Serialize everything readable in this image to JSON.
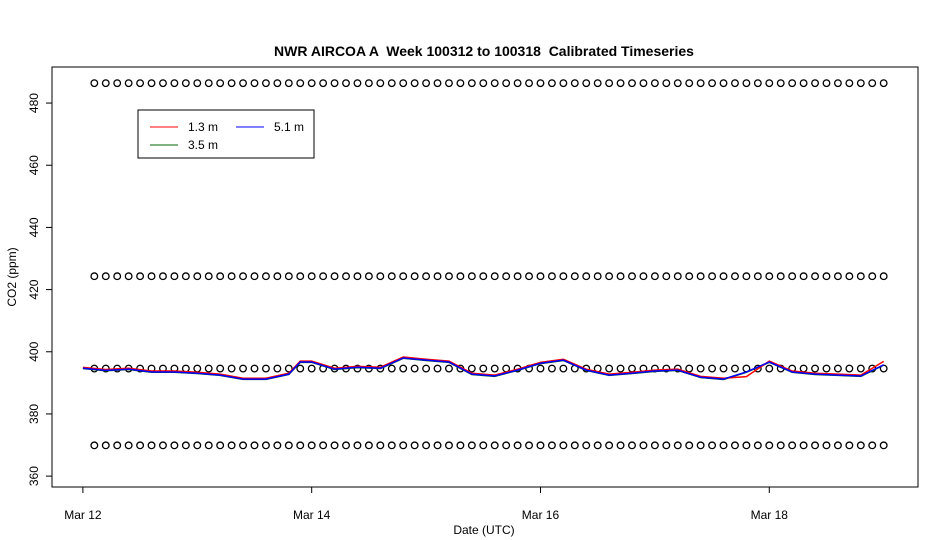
{
  "chart_data": {
    "type": "line",
    "title": "NWR AIRCOA A  Week 100312 to 100318  Calibrated Timeseries",
    "x_label": "Date (UTC)",
    "y_label": "CO2 (ppm)",
    "x": [
      12.0,
      12.2,
      12.4,
      12.6,
      12.8,
      13.0,
      13.2,
      13.4,
      13.6,
      13.8,
      13.9,
      14.0,
      14.2,
      14.4,
      14.6,
      14.8,
      15.0,
      15.2,
      15.4,
      15.6,
      15.8,
      16.0,
      16.2,
      16.4,
      16.6,
      16.8,
      17.0,
      17.2,
      17.4,
      17.6,
      17.8,
      18.0,
      18.2,
      18.4,
      18.6,
      18.8,
      19.0
    ],
    "series": [
      {
        "name": "3.5 m",
        "color": "#006400",
        "values": [
          394.6,
          393.9,
          394.3,
          393.4,
          393.4,
          393.0,
          392.4,
          391.1,
          391.1,
          392.7,
          396.6,
          396.6,
          394.3,
          394.9,
          394.6,
          397.9,
          397.2,
          396.6,
          392.7,
          392.1,
          394.0,
          396.2,
          397.2,
          394.0,
          392.4,
          393.0,
          393.7,
          394.0,
          391.7,
          391.1,
          393.4,
          396.6,
          393.4,
          392.7,
          392.4,
          392.1,
          395.7
        ]
      },
      {
        "name": "1.3 m",
        "color": "#ff0000",
        "values": [
          395.0,
          394.3,
          394.7,
          393.8,
          393.8,
          393.4,
          392.8,
          391.5,
          391.5,
          393.1,
          397.0,
          397.0,
          394.7,
          395.3,
          395.0,
          398.3,
          397.6,
          397.0,
          393.1,
          392.5,
          394.4,
          396.6,
          397.6,
          394.4,
          392.8,
          393.4,
          394.1,
          394.4,
          392.1,
          391.5,
          392.0,
          397.0,
          393.8,
          393.1,
          392.8,
          392.5,
          396.9
        ]
      },
      {
        "name": "5.1 m",
        "color": "#0000ff",
        "values": [
          394.7,
          394.0,
          394.4,
          393.5,
          393.5,
          393.1,
          392.5,
          391.2,
          391.2,
          392.8,
          396.7,
          396.7,
          394.4,
          395.0,
          394.7,
          398.0,
          397.3,
          396.7,
          392.8,
          392.2,
          394.1,
          396.3,
          397.3,
          394.1,
          392.5,
          393.1,
          393.8,
          394.1,
          391.8,
          391.2,
          393.5,
          396.7,
          393.5,
          392.8,
          392.5,
          392.2,
          395.8
        ]
      }
    ],
    "markers": {
      "x": [
        12.1,
        12.2,
        12.3,
        12.4,
        12.5,
        12.6,
        12.7,
        12.8,
        12.9,
        13.0,
        13.1,
        13.2,
        13.3,
        13.4,
        13.5,
        13.6,
        13.7,
        13.8,
        13.9,
        14.0,
        14.1,
        14.2,
        14.3,
        14.4,
        14.5,
        14.6,
        14.7,
        14.8,
        14.9,
        15.0,
        15.1,
        15.2,
        15.3,
        15.4,
        15.5,
        15.6,
        15.7,
        15.8,
        15.9,
        16.0,
        16.1,
        16.2,
        16.3,
        16.4,
        16.5,
        16.6,
        16.7,
        16.8,
        16.9,
        17.0,
        17.1,
        17.2,
        17.3,
        17.4,
        17.5,
        17.6,
        17.7,
        17.8,
        17.9,
        18.0,
        18.1,
        18.2,
        18.3,
        18.4,
        18.5,
        18.6,
        18.7,
        18.8,
        18.9,
        19.0
      ],
      "rows": [
        486.4,
        424.3,
        394.6,
        369.9
      ]
    },
    "xlim": [
      11.73,
      19.3
    ],
    "ylim": [
      356.5,
      491.6
    ],
    "xticks": [
      {
        "value": 12,
        "label": "Mar 12"
      },
      {
        "value": 14,
        "label": "Mar 14"
      },
      {
        "value": 16,
        "label": "Mar 16"
      },
      {
        "value": 18,
        "label": "Mar 18"
      }
    ],
    "yticks": [
      360,
      380,
      400,
      420,
      440,
      460,
      480
    ]
  }
}
